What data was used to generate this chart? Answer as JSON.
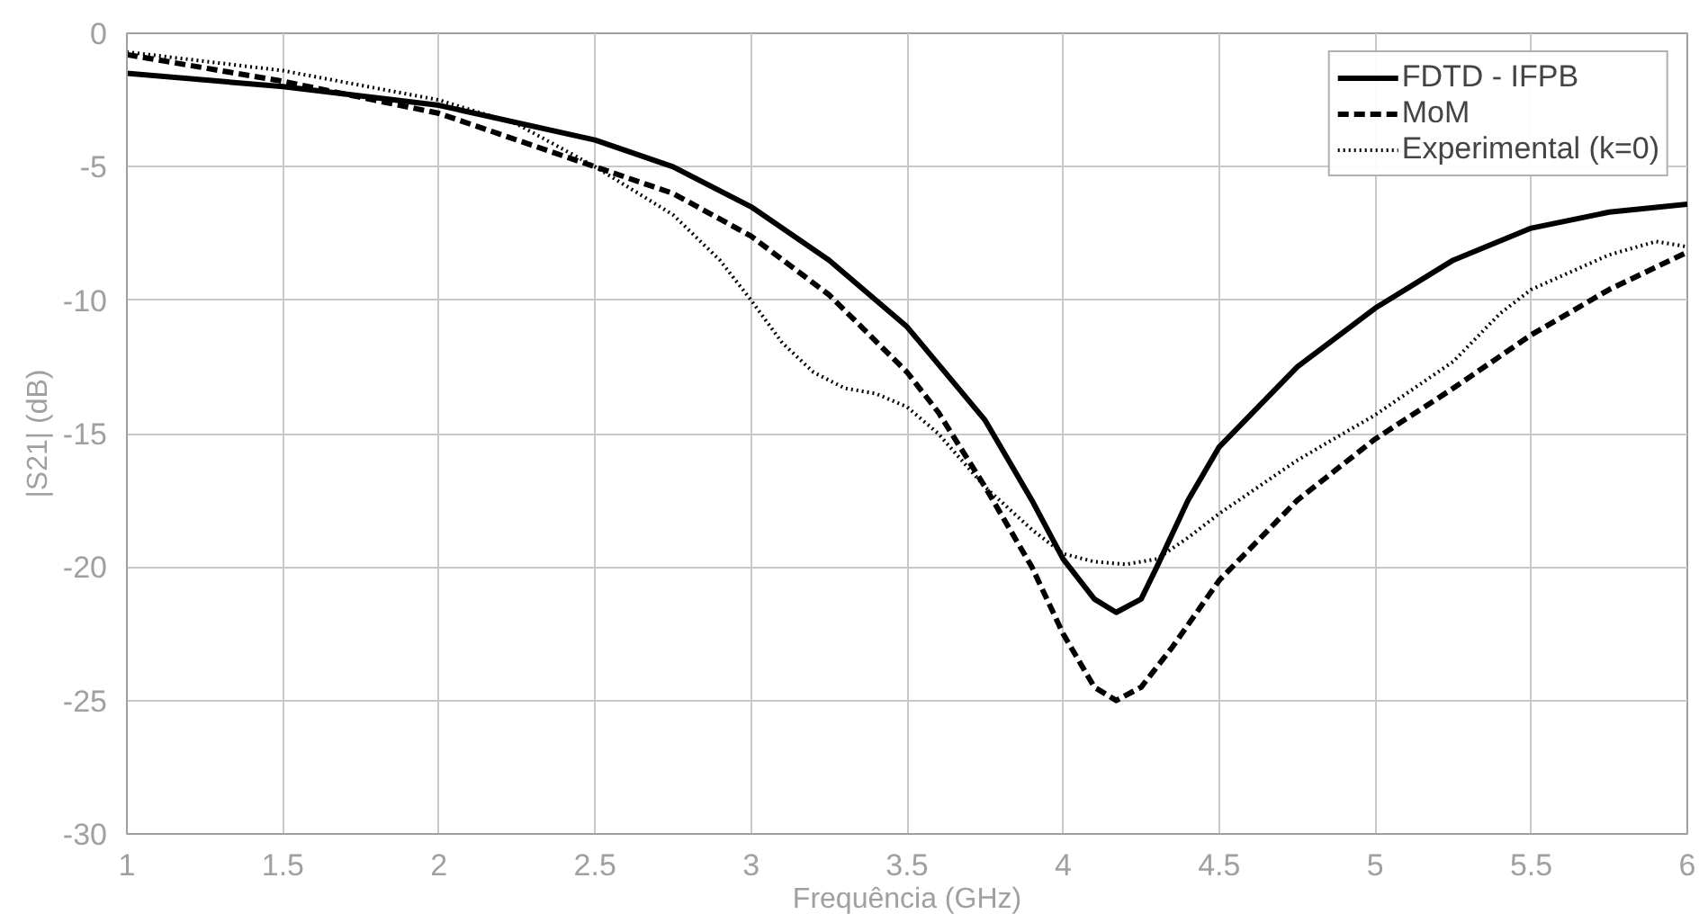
{
  "chart_data": {
    "type": "line",
    "xlabel": "Frequência (GHz)",
    "ylabel": "|S21| (dB)",
    "xlim": [
      1,
      6
    ],
    "xticks": [
      1,
      1.5,
      2,
      2.5,
      3,
      3.5,
      4,
      4.5,
      5,
      5.5,
      6
    ],
    "ylim": [
      -30,
      0
    ],
    "yticks": [
      -30,
      -25,
      -20,
      -15,
      -10,
      -5,
      0
    ],
    "grid": true,
    "legend": "top right",
    "marker": "none",
    "series": [
      {
        "name": "FDTD - IFPB",
        "color": "#000000",
        "line_style": "solid",
        "x": [
          1,
          1.5,
          2,
          2.5,
          2.75,
          3,
          3.25,
          3.5,
          3.75,
          3.9,
          4,
          4.1,
          4.17,
          4.25,
          4.3,
          4.4,
          4.5,
          4.75,
          5,
          5.25,
          5.5,
          5.75,
          6
        ],
        "values": [
          -1.5,
          -2.0,
          -2.7,
          -4.0,
          -5.0,
          -6.5,
          -8.5,
          -11,
          -14.5,
          -17.5,
          -19.7,
          -21.2,
          -21.7,
          -21.2,
          -20.0,
          -17.5,
          -15.5,
          -12.5,
          -10.3,
          -8.5,
          -7.3,
          -6.7,
          -6.4
        ]
      },
      {
        "name": "MoM",
        "color": "#000000",
        "line_style": "dashed",
        "x": [
          1,
          1.5,
          2,
          2.5,
          2.75,
          3,
          3.25,
          3.5,
          3.6,
          3.75,
          3.9,
          4,
          4.1,
          4.17,
          4.25,
          4.35,
          4.5,
          4.75,
          5,
          5.25,
          5.5,
          5.75,
          6
        ],
        "values": [
          -0.8,
          -1.8,
          -3.0,
          -5.0,
          -6.0,
          -7.6,
          -9.8,
          -12.7,
          -14.2,
          -17.0,
          -20.0,
          -22.5,
          -24.5,
          -25.0,
          -24.5,
          -23,
          -20.5,
          -17.5,
          -15.2,
          -13.3,
          -11.3,
          -9.6,
          -8.2
        ]
      },
      {
        "name": "Experimental (k=0)",
        "color": "#000000",
        "line_style": "dotted",
        "x": [
          1,
          1.5,
          2,
          2.25,
          2.5,
          2.75,
          2.9,
          3,
          3.1,
          3.2,
          3.3,
          3.4,
          3.5,
          3.6,
          3.75,
          3.9,
          4,
          4.1,
          4.2,
          4.3,
          4.4,
          4.5,
          4.75,
          5,
          5.25,
          5.4,
          5.5,
          5.75,
          5.9,
          6
        ],
        "values": [
          -0.7,
          -1.4,
          -2.5,
          -3.4,
          -5.0,
          -6.8,
          -8.5,
          -10.0,
          -11.6,
          -12.7,
          -13.3,
          -13.5,
          -14.0,
          -15.0,
          -17.0,
          -18.6,
          -19.5,
          -19.8,
          -19.9,
          -19.7,
          -18.9,
          -18.0,
          -16.0,
          -14.3,
          -12.3,
          -10.5,
          -9.6,
          -8.3,
          -7.8,
          -8.0
        ]
      }
    ]
  }
}
